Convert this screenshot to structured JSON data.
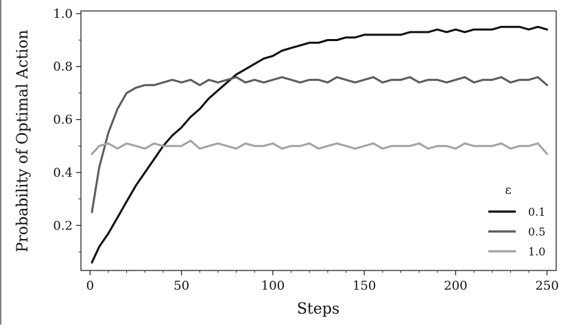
{
  "chart_data": {
    "type": "line",
    "xlabel": "Steps",
    "ylabel": "Probability of Optimal Action",
    "xlim": [
      -5,
      255
    ],
    "ylim": [
      0.03,
      1.01
    ],
    "xticks": [
      0,
      50,
      100,
      150,
      200,
      250
    ],
    "xtick_labels": [
      "0",
      "50",
      "100",
      "150",
      "200",
      "250"
    ],
    "yticks": [
      0.2,
      0.4,
      0.6,
      0.8,
      1.0
    ],
    "ytick_labels": [
      "0.2",
      "0.4",
      "0.6",
      "0.8",
      "1.0"
    ],
    "grid": false,
    "legend": {
      "title": "ε",
      "position": "bottom-right"
    },
    "x": [
      1,
      5,
      10,
      15,
      20,
      25,
      30,
      35,
      40,
      45,
      50,
      55,
      60,
      65,
      70,
      75,
      80,
      85,
      90,
      95,
      100,
      105,
      110,
      115,
      120,
      125,
      130,
      135,
      140,
      145,
      150,
      155,
      160,
      165,
      170,
      175,
      180,
      185,
      190,
      195,
      200,
      205,
      210,
      215,
      220,
      225,
      230,
      235,
      240,
      245,
      250
    ],
    "series": [
      {
        "name": "0.1",
        "color": "#111111",
        "values": [
          0.06,
          0.12,
          0.17,
          0.23,
          0.29,
          0.35,
          0.4,
          0.45,
          0.5,
          0.54,
          0.57,
          0.61,
          0.64,
          0.68,
          0.71,
          0.74,
          0.77,
          0.79,
          0.81,
          0.83,
          0.84,
          0.86,
          0.87,
          0.88,
          0.89,
          0.89,
          0.9,
          0.9,
          0.91,
          0.91,
          0.92,
          0.92,
          0.92,
          0.92,
          0.92,
          0.93,
          0.93,
          0.93,
          0.94,
          0.93,
          0.94,
          0.93,
          0.94,
          0.94,
          0.94,
          0.95,
          0.95,
          0.95,
          0.94,
          0.95,
          0.94
        ]
      },
      {
        "name": "0.5",
        "color": "#5c5c5c",
        "values": [
          0.25,
          0.42,
          0.55,
          0.64,
          0.7,
          0.72,
          0.73,
          0.73,
          0.74,
          0.75,
          0.74,
          0.75,
          0.73,
          0.75,
          0.74,
          0.75,
          0.76,
          0.74,
          0.75,
          0.74,
          0.75,
          0.76,
          0.75,
          0.74,
          0.75,
          0.75,
          0.74,
          0.76,
          0.75,
          0.74,
          0.75,
          0.76,
          0.74,
          0.75,
          0.75,
          0.76,
          0.74,
          0.75,
          0.75,
          0.74,
          0.75,
          0.76,
          0.74,
          0.75,
          0.75,
          0.76,
          0.74,
          0.75,
          0.75,
          0.76,
          0.73
        ]
      },
      {
        "name": "1.0",
        "color": "#a3a3a3",
        "values": [
          0.47,
          0.5,
          0.51,
          0.49,
          0.51,
          0.5,
          0.49,
          0.51,
          0.5,
          0.5,
          0.5,
          0.52,
          0.49,
          0.5,
          0.51,
          0.5,
          0.49,
          0.51,
          0.5,
          0.5,
          0.51,
          0.49,
          0.5,
          0.5,
          0.51,
          0.49,
          0.5,
          0.51,
          0.5,
          0.49,
          0.5,
          0.51,
          0.49,
          0.5,
          0.5,
          0.5,
          0.51,
          0.49,
          0.5,
          0.5,
          0.49,
          0.51,
          0.5,
          0.5,
          0.5,
          0.51,
          0.49,
          0.5,
          0.5,
          0.51,
          0.47
        ]
      }
    ]
  }
}
